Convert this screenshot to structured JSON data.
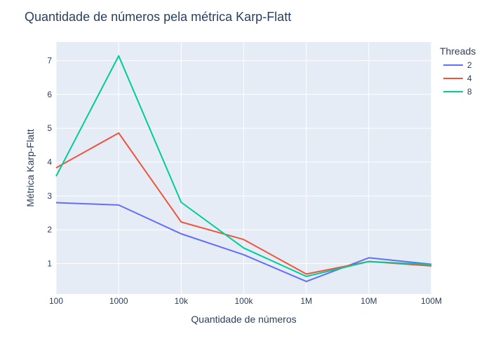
{
  "chart_data": {
    "type": "line",
    "title": "Quantidade de números pela métrica Karp-Flatt",
    "xlabel": "Quantidade de números",
    "ylabel": "Métrica Karp-Flatt",
    "x_scale": "log",
    "x": [
      100,
      1000,
      10000,
      100000,
      1000000,
      10000000,
      100000000
    ],
    "x_tick_labels": [
      "100",
      "1000",
      "10k",
      "100k",
      "1M",
      "10M",
      "100M"
    ],
    "y_ticks": [
      1,
      2,
      3,
      4,
      5,
      6,
      7
    ],
    "ylim": [
      0.1,
      7.55
    ],
    "grid": true,
    "legend": {
      "title": "Threads",
      "placement": "top-right"
    },
    "series": [
      {
        "name": "2",
        "color": "#636efa",
        "values": [
          2.8,
          2.73,
          1.88,
          1.26,
          0.47,
          1.17,
          0.98
        ]
      },
      {
        "name": "4",
        "color": "#ef553b",
        "values": [
          3.83,
          4.86,
          2.23,
          1.71,
          0.69,
          1.06,
          0.93
        ]
      },
      {
        "name": "8",
        "color": "#00cc96",
        "values": [
          3.58,
          7.14,
          2.81,
          1.46,
          0.62,
          1.06,
          0.97
        ]
      }
    ]
  }
}
